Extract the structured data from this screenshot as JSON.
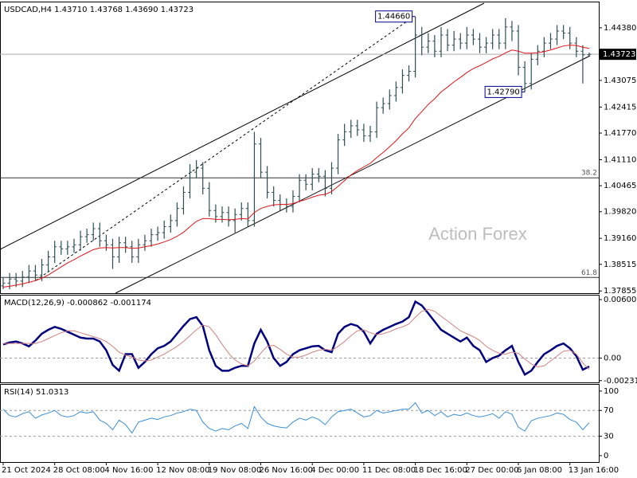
{
  "chart_data": [
    {
      "type": "ohlc",
      "title": "USDCAD,H4",
      "header_values": [
        "1.43710",
        "1.43768",
        "1.43690",
        "1.43723"
      ],
      "watermark": "Action Forex",
      "categories": [
        "21 Oct 2024",
        null,
        null,
        null,
        null,
        null,
        null,
        null,
        "28 Oct 08:00",
        null,
        null,
        null,
        null,
        null,
        null,
        null,
        "4 Nov 16:00",
        null,
        null,
        null,
        null,
        null,
        null,
        null,
        "12 Nov 08:00",
        null,
        null,
        null,
        null,
        null,
        null,
        null,
        "19 Nov 08:00",
        null,
        null,
        null,
        null,
        null,
        null,
        null,
        "26 Nov 16:00",
        null,
        null,
        null,
        null,
        null,
        null,
        null,
        "4 Dec 00:00",
        null,
        null,
        null,
        null,
        null,
        null,
        null,
        "11 Dec 08:00",
        null,
        null,
        null,
        null,
        null,
        null,
        null,
        "18 Dec 16:00",
        null,
        null,
        null,
        null,
        null,
        null,
        null,
        "27 Dec 00:00",
        null,
        null,
        null,
        null,
        null,
        null,
        null,
        "6 Jan 08:00",
        null,
        null,
        null,
        null,
        null,
        null,
        null,
        "13 Jan 16:00",
        null,
        null,
        null
      ],
      "bar_color": "#2f4f4f",
      "opens": [
        1.3798,
        1.3805,
        1.3815,
        1.381,
        1.382,
        1.3835,
        1.3825,
        1.385,
        1.387,
        1.3895,
        1.389,
        1.3895,
        1.39,
        1.392,
        1.3925,
        1.394,
        1.391,
        1.39,
        1.387,
        1.3905,
        1.3895,
        1.387,
        1.39,
        1.391,
        1.3925,
        1.393,
        1.3945,
        1.396,
        1.399,
        1.403,
        1.408,
        1.409,
        1.404,
        1.3985,
        1.397,
        1.398,
        1.396,
        1.3975,
        1.399,
        1.396,
        1.415,
        1.408,
        1.403,
        1.401,
        1.4,
        1.3995,
        1.402,
        1.406,
        1.405,
        1.4075,
        1.407,
        1.404,
        1.409,
        1.416,
        1.418,
        1.4195,
        1.4185,
        1.417,
        1.418,
        1.424,
        1.425,
        1.427,
        1.429,
        1.432,
        1.433,
        1.442,
        1.439,
        1.4405,
        1.438,
        1.442,
        1.4395,
        1.441,
        1.44,
        1.442,
        1.441,
        1.439,
        1.44,
        1.442,
        1.44,
        1.444,
        1.443,
        1.434,
        1.43,
        1.436,
        1.438,
        1.44,
        1.441,
        1.443,
        1.4425,
        1.44,
        1.438,
        1.4371
      ],
      "highs": [
        1.382,
        1.383,
        1.383,
        1.3835,
        1.385,
        1.385,
        1.3865,
        1.3885,
        1.391,
        1.391,
        1.391,
        1.3915,
        1.3935,
        1.394,
        1.3955,
        1.3955,
        1.3925,
        1.3915,
        1.392,
        1.392,
        1.391,
        1.3915,
        1.3925,
        1.394,
        1.3945,
        1.396,
        1.3975,
        1.4005,
        1.4045,
        1.41,
        1.411,
        1.4105,
        1.4055,
        1.4,
        1.3995,
        1.3995,
        1.399,
        1.4005,
        1.4005,
        1.418,
        1.4165,
        1.4095,
        1.4045,
        1.4025,
        1.4015,
        1.4035,
        1.4075,
        1.4075,
        1.409,
        1.409,
        1.4085,
        1.4105,
        1.4175,
        1.42,
        1.421,
        1.421,
        1.42,
        1.4195,
        1.4255,
        1.4265,
        1.4285,
        1.4305,
        1.4335,
        1.4345,
        1.4466,
        1.444,
        1.4425,
        1.442,
        1.444,
        1.4435,
        1.443,
        1.4425,
        1.444,
        1.4435,
        1.4425,
        1.4415,
        1.4435,
        1.4435,
        1.4462,
        1.4455,
        1.4445,
        1.4355,
        1.4375,
        1.4395,
        1.4415,
        1.4425,
        1.4445,
        1.4445,
        1.444,
        1.4415,
        1.4395,
        1.43768
      ],
      "lows": [
        1.379,
        1.379,
        1.3795,
        1.3795,
        1.3805,
        1.381,
        1.381,
        1.3835,
        1.3855,
        1.3875,
        1.3875,
        1.388,
        1.3885,
        1.3905,
        1.391,
        1.3895,
        1.3885,
        1.384,
        1.3855,
        1.388,
        1.3855,
        1.3855,
        1.3885,
        1.3895,
        1.391,
        1.3915,
        1.393,
        1.3945,
        1.3975,
        1.4015,
        1.4065,
        1.4025,
        1.397,
        1.3955,
        1.3955,
        1.3945,
        1.393,
        1.396,
        1.3945,
        1.3945,
        1.4065,
        1.4015,
        1.3995,
        1.3985,
        1.398,
        1.398,
        1.4005,
        1.4035,
        1.4035,
        1.4055,
        1.402,
        1.4025,
        1.4075,
        1.4145,
        1.4165,
        1.417,
        1.4155,
        1.4155,
        1.4165,
        1.4225,
        1.4235,
        1.4255,
        1.4275,
        1.4305,
        1.4315,
        1.437,
        1.4375,
        1.4365,
        1.4365,
        1.438,
        1.438,
        1.4385,
        1.4385,
        1.4395,
        1.4375,
        1.4375,
        1.4385,
        1.4385,
        1.4385,
        1.4405,
        1.432,
        1.4279,
        1.4285,
        1.4345,
        1.4365,
        1.4385,
        1.4395,
        1.441,
        1.4385,
        1.4365,
        1.43,
        1.4369
      ],
      "closes": [
        1.3805,
        1.3815,
        1.381,
        1.382,
        1.3835,
        1.3825,
        1.385,
        1.387,
        1.3895,
        1.389,
        1.3895,
        1.39,
        1.392,
        1.3925,
        1.394,
        1.391,
        1.39,
        1.387,
        1.3905,
        1.3895,
        1.387,
        1.39,
        1.391,
        1.3925,
        1.393,
        1.3945,
        1.396,
        1.399,
        1.403,
        1.408,
        1.409,
        1.404,
        1.3985,
        1.397,
        1.398,
        1.396,
        1.3975,
        1.399,
        1.396,
        1.415,
        1.408,
        1.403,
        1.401,
        1.4,
        1.3995,
        1.402,
        1.406,
        1.405,
        1.4075,
        1.407,
        1.404,
        1.409,
        1.416,
        1.418,
        1.4195,
        1.4185,
        1.417,
        1.418,
        1.424,
        1.425,
        1.427,
        1.429,
        1.432,
        1.433,
        1.442,
        1.439,
        1.4405,
        1.438,
        1.442,
        1.4395,
        1.441,
        1.44,
        1.442,
        1.441,
        1.439,
        1.44,
        1.442,
        1.44,
        1.444,
        1.443,
        1.434,
        1.43,
        1.436,
        1.438,
        1.44,
        1.441,
        1.443,
        1.4425,
        1.44,
        1.438,
        1.4371,
        1.43723
      ],
      "ma": {
        "color": "#e0151b",
        "values": [
          1.3795,
          1.3797,
          1.38,
          1.3803,
          1.3807,
          1.3811,
          1.3817,
          1.3825,
          1.3835,
          1.3845,
          1.3855,
          1.3863,
          1.3872,
          1.388,
          1.3888,
          1.3892,
          1.3893,
          1.3892,
          1.3893,
          1.3893,
          1.3891,
          1.3892,
          1.3895,
          1.3898,
          1.3902,
          1.3907,
          1.3913,
          1.3921,
          1.3931,
          1.3945,
          1.3958,
          1.3965,
          1.3965,
          1.3963,
          1.3963,
          1.3962,
          1.3963,
          1.3965,
          1.3964,
          1.398,
          1.399,
          1.3995,
          1.3999,
          1.4,
          1.4,
          1.4002,
          1.4008,
          1.4012,
          1.4018,
          1.4023,
          1.4025,
          1.4032,
          1.4045,
          1.4059,
          1.4073,
          1.4084,
          1.4093,
          1.4102,
          1.4116,
          1.4129,
          1.4143,
          1.4158,
          1.4175,
          1.419,
          1.4213,
          1.423,
          1.4248,
          1.4262,
          1.4279,
          1.4291,
          1.4304,
          1.4315,
          1.4327,
          1.4337,
          1.4344,
          1.4352,
          1.4361,
          1.4367,
          1.4376,
          1.4383,
          1.438,
          1.4375,
          1.4375,
          1.4376,
          1.4379,
          1.4383,
          1.4388,
          1.4393,
          1.4395,
          1.4394,
          1.439,
          1.4387
        ]
      },
      "annotations": [
        {
          "value": 1.4466,
          "label": "1.44660"
        },
        {
          "value": 1.4279,
          "label": "1.42790"
        }
      ],
      "fib_levels": [
        {
          "price": 1.4066,
          "label": "38.2"
        },
        {
          "price": 1.3819,
          "label": "61.8"
        }
      ],
      "last_price": {
        "value": 1.43723,
        "label": "1.43723"
      },
      "ylim": [
        1.378,
        1.4503
      ],
      "yticks": [
        {
          "value": 1.4438,
          "label": "1.44380"
        },
        1.43075,
        1.42415,
        {
          "value": 1.4177,
          "label": "1.41770"
        },
        {
          "value": 1.4111,
          "label": "1.41110"
        },
        1.40465,
        {
          "value": 1.3982,
          "label": "1.39820"
        },
        {
          "value": 1.3916,
          "label": "1.39160"
        },
        1.38515,
        1.37855
      ]
    },
    {
      "type": "line",
      "title": "MACD(12,26,9)",
      "header_values": [
        "-0.000862",
        "-0.001174"
      ],
      "series": [
        {
          "color": "#00007f",
          "values": [
            0.0014,
            0.0016,
            0.0017,
            0.0015,
            0.0012,
            0.0018,
            0.0025,
            0.0029,
            0.0032,
            0.003,
            0.0027,
            0.0024,
            0.0021,
            0.002,
            0.002,
            0.0017,
            0.0008,
            -0.0007,
            -0.0013,
            0.0004,
            0.0004,
            -0.001,
            -0.0004,
            0.0004,
            0.001,
            0.00125,
            0.0017,
            0.0025,
            0.0033,
            0.004,
            0.0042,
            0.0033,
            0.0008,
            -0.0008,
            -0.0013,
            -0.0013,
            -0.001,
            -0.0008,
            -0.0008,
            0.0015,
            0.0029,
            0.0017,
            0,
            -0.0008,
            -0.0004,
            0.0004,
            0.0008,
            0.001,
            0.0012,
            0.00125,
            0.0008,
            0.0006,
            0.0025,
            0.0032,
            0.0035,
            0.0033,
            0.0027,
            0.0015,
            0.0025,
            0.0029,
            0.0032,
            0.0035,
            0.00375,
            0.0042,
            0.0058,
            0.0054,
            0.0046,
            0.00375,
            0.0029,
            0.0025,
            0.0021,
            0.0017,
            0.0021,
            0.00125,
            0.0008,
            -0.0004,
            0,
            0.00025,
            0.0008,
            0.00125,
            -0.0004,
            -0.0017,
            -0.0013,
            -0.0004,
            0.0004,
            0.0008,
            0.00125,
            0.0015,
            0.001,
            0.0002,
            -0.0012,
            -0.000862
          ]
        },
        {
          "color": "#d08080",
          "values": [
            0.0015,
            0.0015,
            0.0015,
            0.0015,
            0.0015,
            0.0015,
            0.0017,
            0.002,
            0.0023,
            0.0026,
            0.0028,
            0.0028,
            0.0026,
            0.0024,
            0.0022,
            0.002,
            0.0017,
            0.0012,
            0.0006,
            0.0003,
            0.0001,
            -0.0002,
            -0.0003,
            -0.0002,
            0.0001,
            0.0004,
            0.0008,
            0.0012,
            0.0017,
            0.0023,
            0.0029,
            0.0034,
            0.0032,
            0.0024,
            0.0014,
            0.0005,
            -0.0002,
            -0.0006,
            -0.0008,
            -0.0003,
            0.0005,
            0.0012,
            0.0013,
            0.0009,
            0.0004,
            0.0001,
            0.0001,
            0.0003,
            0.0006,
            0.0008,
            0.0009,
            0.0008,
            0.0012,
            0.0017,
            0.0023,
            0.0028,
            0.0029,
            0.0026,
            0.0024,
            0.0025,
            0.0027,
            0.003,
            0.0032,
            0.0035,
            0.0042,
            0.0048,
            0.005,
            0.0048,
            0.0043,
            0.0038,
            0.0033,
            0.0028,
            0.0025,
            0.0022,
            0.0018,
            0.0012,
            0.0008,
            0.0005,
            0.0004,
            0.0006,
            0.0005,
            -0.0001,
            -0.0006,
            -0.0009,
            -0.0008,
            -0.0003,
            0.0002,
            0.0007,
            0.0008,
            0.0004,
            -0.0005,
            -0.001174
          ]
        }
      ],
      "levels": [
        0
      ],
      "ylim": [
        -0.0025,
        0.0065
      ],
      "yticks": [
        0.006007,
        {
          "value": 0,
          "label": "0.00"
        },
        -0.002318
      ]
    },
    {
      "type": "line",
      "title": "RSI(14)",
      "header_values": [
        "51.0313"
      ],
      "series": [
        {
          "color": "#3a8fd8",
          "values": [
            72,
            62,
            60,
            65,
            68,
            58,
            63,
            66,
            70,
            62,
            60,
            62,
            68,
            66,
            68,
            55,
            50,
            40,
            55,
            48,
            35,
            52,
            55,
            58,
            56,
            60,
            62,
            66,
            68,
            72,
            70,
            52,
            42,
            38,
            42,
            40,
            46,
            50,
            42,
            76,
            60,
            50,
            46,
            44,
            43,
            52,
            58,
            55,
            60,
            56,
            48,
            60,
            68,
            70,
            72,
            66,
            60,
            62,
            70,
            66,
            68,
            70,
            72,
            72,
            82,
            66,
            70,
            62,
            68,
            60,
            64,
            62,
            66,
            62,
            60,
            62,
            65,
            58,
            68,
            64,
            44,
            38,
            54,
            58,
            60,
            62,
            66,
            64,
            56,
            52,
            40,
            51.0313
          ]
        }
      ],
      "levels": [
        70,
        30
      ],
      "ylim": [
        -10,
        111
      ],
      "yticks": [
        100,
        70,
        30,
        0
      ]
    }
  ]
}
